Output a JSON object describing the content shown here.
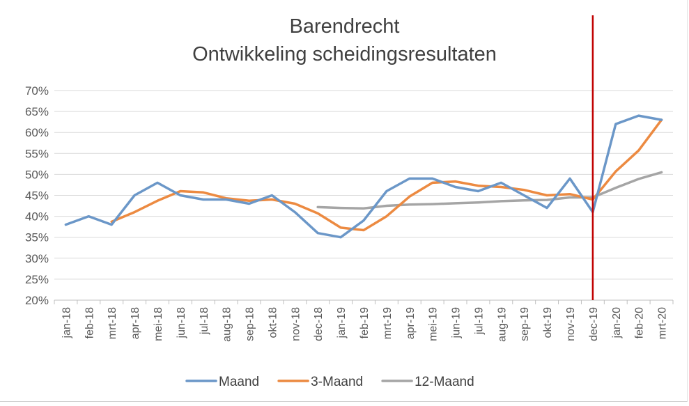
{
  "chart_data": {
    "type": "line",
    "title": [
      "Barendrecht",
      "Ontwikkeling scheidingsresultaten"
    ],
    "categories": [
      "jan-18",
      "feb-18",
      "mrt-18",
      "apr-18",
      "mei-18",
      "jun-18",
      "jul-18",
      "aug-18",
      "sep-18",
      "okt-18",
      "nov-18",
      "dec-18",
      "jan-19",
      "feb-19",
      "mrt-19",
      "apr-19",
      "mei-19",
      "jun-19",
      "jul-19",
      "aug-19",
      "sep-19",
      "okt-19",
      "nov-19",
      "dec-19",
      "jan-20",
      "feb-20",
      "mrt-20"
    ],
    "yticks": [
      "20%",
      "25%",
      "30%",
      "35%",
      "40%",
      "45%",
      "50%",
      "55%",
      "60%",
      "65%",
      "70%"
    ],
    "ylim": [
      20,
      70
    ],
    "grid": true,
    "legend_position": "bottom",
    "marker_line": {
      "category": "dec-19",
      "color": "#c00000"
    },
    "series": [
      {
        "name": "Maand",
        "color": "#6b97c8",
        "values": [
          38,
          40,
          38,
          45,
          48,
          45,
          44,
          44,
          43,
          45,
          41,
          36,
          35,
          39,
          46,
          49,
          49,
          47,
          46,
          48,
          45,
          42,
          49,
          41,
          62,
          64,
          63
        ]
      },
      {
        "name": "3-Maand",
        "color": "#ec8a41",
        "values": [
          null,
          null,
          38.7,
          41.0,
          43.7,
          46.0,
          45.7,
          44.3,
          43.7,
          44.0,
          43.0,
          40.7,
          37.3,
          36.7,
          40.0,
          44.7,
          48.0,
          48.3,
          47.3,
          47.0,
          46.3,
          45.0,
          45.3,
          44.0,
          50.7,
          55.7,
          63.0
        ]
      },
      {
        "name": "12-Maand",
        "color": "#a5a5a5",
        "values": [
          null,
          null,
          null,
          null,
          null,
          null,
          null,
          null,
          null,
          null,
          null,
          42.2,
          42.0,
          41.9,
          42.5,
          42.8,
          42.9,
          43.1,
          43.3,
          43.6,
          43.8,
          43.9,
          44.5,
          44.5,
          46.8,
          48.9,
          50.5
        ]
      }
    ]
  }
}
